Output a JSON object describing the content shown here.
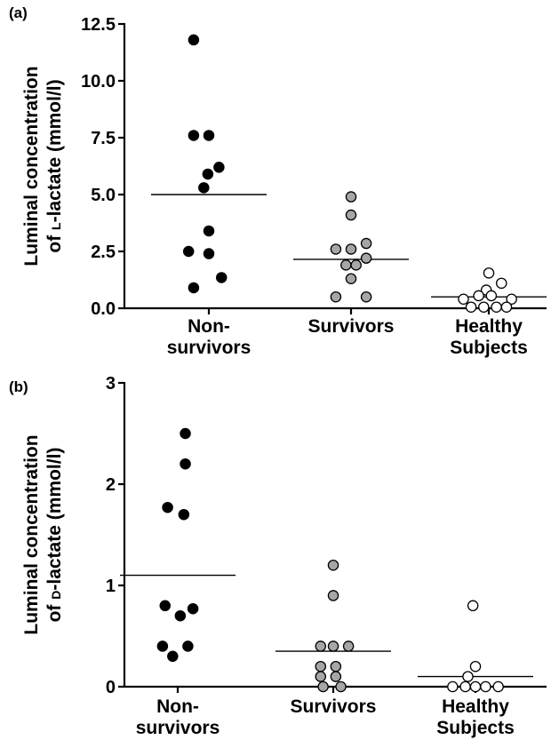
{
  "chart_data": [
    {
      "panel_label": "(a)",
      "type": "scatter",
      "ylabel_line1": "Luminal concentration",
      "ylabel_line2_prefix": "of ",
      "ylabel_smallcap": "L",
      "ylabel_line2_suffix": "-lactate (mmol/l)",
      "ylim": [
        0,
        12.5
      ],
      "yticks": [
        0.0,
        2.5,
        5.0,
        7.5,
        10.0,
        12.5
      ],
      "ytick_labels": [
        "0.0",
        "2.5",
        "5.0",
        "7.5",
        "10.0",
        "12.5"
      ],
      "categories": [
        {
          "line1": "Non-",
          "line2": "survivors"
        },
        {
          "line1": "Survivors",
          "line2": ""
        },
        {
          "line1": "Healthy",
          "line2": "Subjects"
        }
      ],
      "series": [
        {
          "fill": "#000000",
          "mean": 5.0,
          "points": [
            [
              -0.3,
              11.8
            ],
            [
              -0.3,
              7.6
            ],
            [
              0.0,
              7.6
            ],
            [
              0.2,
              6.2
            ],
            [
              -0.02,
              5.9
            ],
            [
              -0.1,
              5.3
            ],
            [
              0.0,
              3.4
            ],
            [
              -0.4,
              2.5
            ],
            [
              0.0,
              2.4
            ],
            [
              0.25,
              1.35
            ],
            [
              -0.3,
              0.9
            ]
          ]
        },
        {
          "fill": "#a6a6a6",
          "mean": 2.15,
          "points": [
            [
              0.0,
              4.9
            ],
            [
              0.0,
              4.1
            ],
            [
              -0.3,
              2.6
            ],
            [
              0.0,
              2.6
            ],
            [
              0.3,
              2.85
            ],
            [
              0.3,
              2.2
            ],
            [
              -0.1,
              1.9
            ],
            [
              0.1,
              1.9
            ],
            [
              0.0,
              1.3
            ],
            [
              -0.3,
              0.5
            ],
            [
              0.3,
              0.5
            ]
          ]
        },
        {
          "fill": "#ffffff",
          "mean": 0.5,
          "points": [
            [
              0.0,
              1.55
            ],
            [
              0.25,
              1.1
            ],
            [
              -0.05,
              0.8
            ],
            [
              -0.2,
              0.55
            ],
            [
              0.05,
              0.55
            ],
            [
              -0.5,
              0.4
            ],
            [
              0.45,
              0.4
            ],
            [
              -0.35,
              0.05
            ],
            [
              -0.1,
              0.05
            ],
            [
              0.15,
              0.05
            ],
            [
              0.35,
              0.05
            ]
          ]
        }
      ]
    },
    {
      "panel_label": "(b)",
      "type": "scatter",
      "ylabel_line1": "Luminal concentration",
      "ylabel_line2_prefix": "of ",
      "ylabel_smallcap": "D",
      "ylabel_line2_suffix": "-lactate (mmol/l)",
      "ylim": [
        0,
        3
      ],
      "yticks": [
        0,
        1,
        2,
        3
      ],
      "ytick_labels": [
        "0",
        "1",
        "2",
        "3"
      ],
      "categories": [
        {
          "line1": "Non-",
          "line2": "survivors"
        },
        {
          "line1": "Survivors",
          "line2": ""
        },
        {
          "line1": "Healthy",
          "line2": "Subjects"
        }
      ],
      "series": [
        {
          "fill": "#000000",
          "mean": 1.1,
          "points": [
            [
              0.15,
              2.5
            ],
            [
              0.15,
              2.2
            ],
            [
              -0.2,
              1.77
            ],
            [
              0.12,
              1.7
            ],
            [
              -0.25,
              0.8
            ],
            [
              0.3,
              0.77
            ],
            [
              0.05,
              0.7
            ],
            [
              -0.3,
              0.4
            ],
            [
              0.2,
              0.4
            ],
            [
              -0.1,
              0.3
            ]
          ]
        },
        {
          "fill": "#a6a6a6",
          "mean": 0.35,
          "points": [
            [
              0.0,
              1.2
            ],
            [
              0.0,
              0.9
            ],
            [
              -0.25,
              0.4
            ],
            [
              0.0,
              0.4
            ],
            [
              0.3,
              0.4
            ],
            [
              -0.25,
              0.2
            ],
            [
              0.05,
              0.2
            ],
            [
              -0.25,
              0.1
            ],
            [
              0.05,
              0.1
            ],
            [
              -0.2,
              0.0
            ],
            [
              0.15,
              0.0
            ]
          ]
        },
        {
          "fill": "#ffffff",
          "mean": 0.1,
          "points": [
            [
              -0.05,
              0.8
            ],
            [
              0.0,
              0.2
            ],
            [
              -0.15,
              0.1
            ],
            [
              -0.45,
              0.0
            ],
            [
              -0.2,
              0.0
            ],
            [
              0.0,
              0.0
            ],
            [
              0.2,
              0.0
            ],
            [
              0.45,
              0.0
            ]
          ]
        }
      ]
    }
  ]
}
